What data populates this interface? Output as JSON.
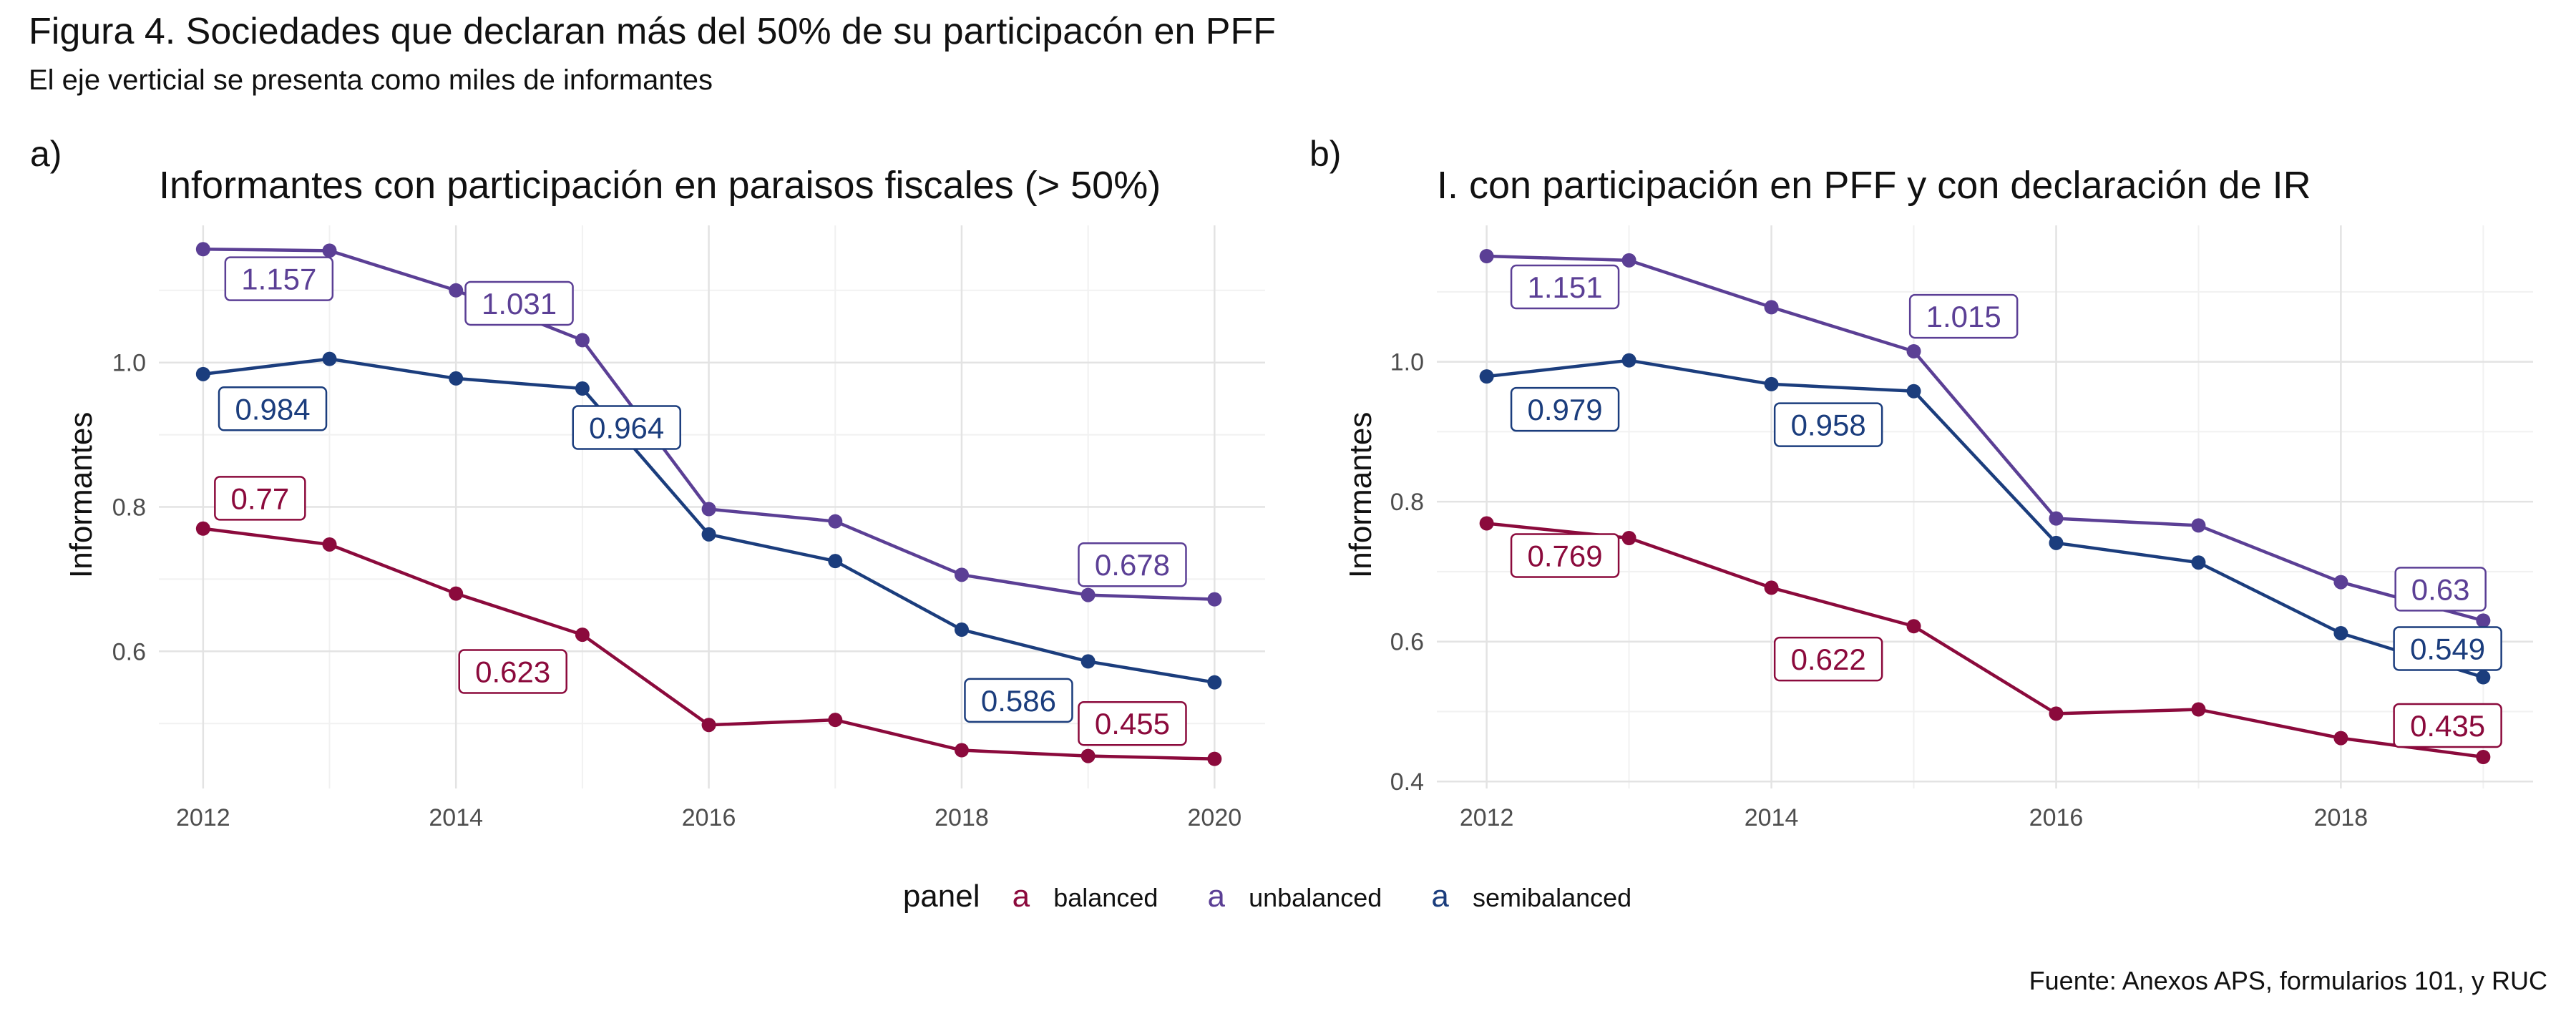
{
  "figure": {
    "title": "Figura 4. Sociedades que declaran más del 50% de su participacón en PFF",
    "subtitle": "El eje verticial se presenta como miles de informantes",
    "caption": "Fuente: Anexos APS, formularios 101, y RUC"
  },
  "legend": {
    "title": "panel",
    "key_glyph": "a",
    "items": [
      {
        "label": "balanced",
        "color": "#8B0A3C"
      },
      {
        "label": "unbalanced",
        "color": "#5B3F95"
      },
      {
        "label": "semibalanced",
        "color": "#1B3D7D"
      }
    ]
  },
  "chart_data": [
    {
      "type": "line",
      "tag": "a)",
      "title": "Informantes con participación en paraisos fiscales (> 50%)",
      "ylabel": "Informantes",
      "xlabel": "",
      "x": [
        2012,
        2013,
        2014,
        2015,
        2016,
        2017,
        2018,
        2019,
        2020
      ],
      "xticks": [
        "2012",
        "2014",
        "2016",
        "2018",
        "2020"
      ],
      "yticks": [
        "0.6",
        "0.8",
        "1.0"
      ],
      "xlim": [
        2011.65,
        2020.4
      ],
      "ylim": [
        0.41,
        1.19
      ],
      "grid": true,
      "series": [
        {
          "name": "unbalanced",
          "color": "#5B3F95",
          "values": [
            1.157,
            1.155,
            1.1,
            1.031,
            0.797,
            0.78,
            0.706,
            0.678,
            0.672
          ],
          "labels": [
            {
              "text": "1.157",
              "x": 2012.6,
              "y": 1.116
            },
            {
              "text": "1.031",
              "x": 2014.5,
              "y": 1.082
            },
            {
              "text": "0.678",
              "x": 2019.35,
              "y": 0.72
            }
          ]
        },
        {
          "name": "semibalanced",
          "color": "#1B3D7D",
          "values": [
            0.984,
            1.005,
            0.978,
            0.964,
            0.762,
            0.725,
            0.63,
            0.586,
            0.557
          ],
          "labels": [
            {
              "text": "0.984",
              "x": 2012.55,
              "y": 0.936
            },
            {
              "text": "0.964",
              "x": 2015.35,
              "y": 0.91
            },
            {
              "text": "0.586",
              "x": 2018.45,
              "y": 0.532
            }
          ]
        },
        {
          "name": "balanced",
          "color": "#8B0A3C",
          "values": [
            0.77,
            0.748,
            0.68,
            0.623,
            0.498,
            0.505,
            0.463,
            0.455,
            0.451
          ],
          "labels": [
            {
              "text": "0.77",
              "x": 2012.45,
              "y": 0.812
            },
            {
              "text": "0.623",
              "x": 2014.45,
              "y": 0.572
            },
            {
              "text": "0.455",
              "x": 2019.35,
              "y": 0.5
            }
          ]
        }
      ]
    },
    {
      "type": "line",
      "tag": "b)",
      "title": "I. con participación en PFF y con declaración de IR",
      "ylabel": "Informantes",
      "xlabel": "",
      "x": [
        2012,
        2013,
        2014,
        2015,
        2016,
        2017,
        2018,
        2019
      ],
      "xticks": [
        "2012",
        "2014",
        "2016",
        "2018"
      ],
      "yticks": [
        "0.4",
        "0.6",
        "0.8",
        "1.0"
      ],
      "xlim": [
        2011.65,
        2019.35
      ],
      "ylim": [
        0.39,
        1.195
      ],
      "grid": true,
      "series": [
        {
          "name": "unbalanced",
          "color": "#5B3F95",
          "values": [
            1.151,
            1.145,
            1.078,
            1.015,
            0.776,
            0.766,
            0.685,
            0.63
          ],
          "labels": [
            {
              "text": "1.151",
              "x": 2012.55,
              "y": 1.107
            },
            {
              "text": "1.015",
              "x": 2015.35,
              "y": 1.065
            },
            {
              "text": "0.63",
              "x": 2018.7,
              "y": 0.675
            }
          ]
        },
        {
          "name": "semibalanced",
          "color": "#1B3D7D",
          "values": [
            0.979,
            1.002,
            0.968,
            0.958,
            0.741,
            0.713,
            0.612,
            0.549
          ],
          "labels": [
            {
              "text": "0.979",
              "x": 2012.55,
              "y": 0.932
            },
            {
              "text": "0.958",
              "x": 2014.4,
              "y": 0.91
            },
            {
              "text": "0.549",
              "x": 2018.75,
              "y": 0.59
            }
          ]
        },
        {
          "name": "balanced",
          "color": "#8B0A3C",
          "values": [
            0.769,
            0.748,
            0.677,
            0.622,
            0.497,
            0.503,
            0.462,
            0.435
          ],
          "labels": [
            {
              "text": "0.769",
              "x": 2012.55,
              "y": 0.723
            },
            {
              "text": "0.622",
              "x": 2014.4,
              "y": 0.575
            },
            {
              "text": "0.435",
              "x": 2018.75,
              "y": 0.48
            }
          ]
        }
      ]
    }
  ]
}
